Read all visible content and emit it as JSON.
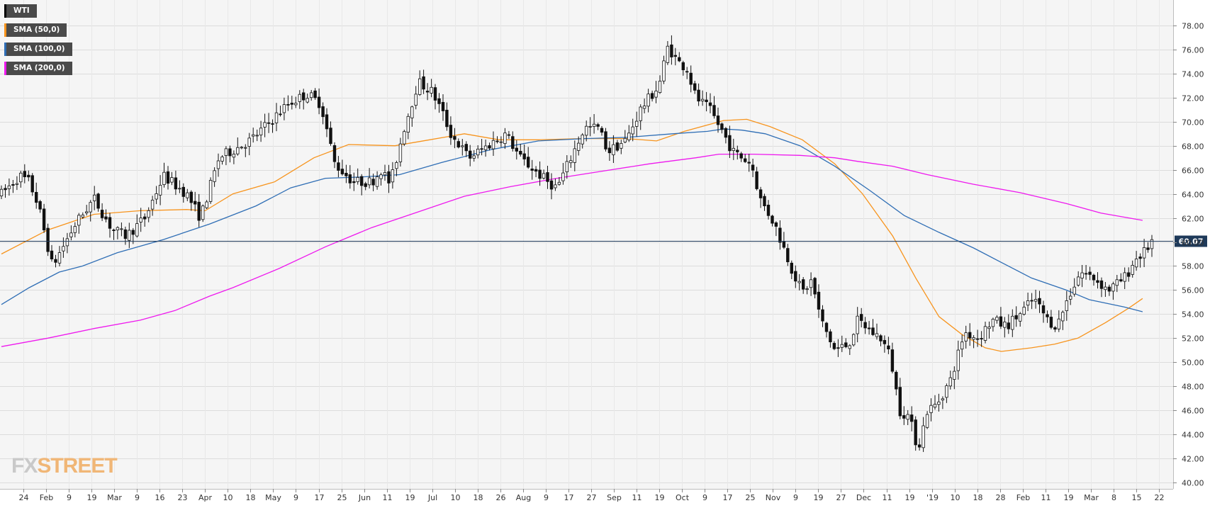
{
  "legend": {
    "items": [
      {
        "label": "WTI",
        "color": "#000000"
      },
      {
        "label": "SMA (50,0)",
        "color": "#f7941d"
      },
      {
        "label": "SMA (100,0)",
        "color": "#2f6eb5"
      },
      {
        "label": "SMA (200,0)",
        "color": "#ee19ee"
      }
    ]
  },
  "logo": {
    "fx": "FX",
    "street": "STREET"
  },
  "chart_data": {
    "type": "line",
    "ylim": [
      40,
      78
    ],
    "y_ticks": [
      "40.00",
      "42.00",
      "44.00",
      "46.00",
      "48.00",
      "50.00",
      "52.00",
      "54.00",
      "56.00",
      "58.00",
      "60.00",
      "62.00",
      "64.00",
      "66.00",
      "68.00",
      "70.00",
      "72.00",
      "74.00",
      "76.00",
      "78.00"
    ],
    "x_tick_labels": [
      "24",
      "Feb",
      "9",
      "19",
      "Mar",
      "9",
      "16",
      "23",
      "Apr",
      "10",
      "18",
      "May",
      "9",
      "17",
      "25",
      "Jun",
      "11",
      "19",
      "Jul",
      "10",
      "18",
      "26",
      "Aug",
      "9",
      "17",
      "27",
      "Sep",
      "11",
      "19",
      "Oct",
      "9",
      "17",
      "25",
      "Nov",
      "9",
      "19",
      "27",
      "Dec",
      "11",
      "19",
      "'19",
      "10",
      "18",
      "28",
      "Feb",
      "11",
      "19",
      "Mar",
      "8",
      "15",
      "22"
    ],
    "last_price": {
      "value": 60.07,
      "label": "60.07"
    },
    "candles": {
      "anchors": [
        [
          0,
          64.0
        ],
        [
          8,
          65.5
        ],
        [
          12,
          65.0
        ],
        [
          16,
          63.0
        ],
        [
          22,
          58.0
        ],
        [
          32,
          61.5
        ],
        [
          40,
          63.6
        ],
        [
          48,
          61.0
        ],
        [
          54,
          60.5
        ],
        [
          62,
          62.0
        ],
        [
          70,
          65.5
        ],
        [
          80,
          64.0
        ],
        [
          86,
          62.0
        ],
        [
          94,
          67.0
        ],
        [
          108,
          68.5
        ],
        [
          124,
          71.5
        ],
        [
          132,
          72.3
        ],
        [
          138,
          71.5
        ],
        [
          144,
          66.5
        ],
        [
          152,
          65.0
        ],
        [
          160,
          65.0
        ],
        [
          164,
          66.0
        ],
        [
          168,
          64.8
        ],
        [
          174,
          69.5
        ],
        [
          180,
          73.3
        ],
        [
          186,
          72.5
        ],
        [
          190,
          71.0
        ],
        [
          194,
          69.0
        ],
        [
          202,
          67.0
        ],
        [
          210,
          68.0
        ],
        [
          218,
          69.0
        ],
        [
          224,
          67.0
        ],
        [
          230,
          66.0
        ],
        [
          236,
          65.0
        ],
        [
          240,
          64.5
        ],
        [
          246,
          67.0
        ],
        [
          252,
          69.5
        ],
        [
          258,
          69.5
        ],
        [
          262,
          67.5
        ],
        [
          270,
          68.5
        ],
        [
          276,
          71.0
        ],
        [
          284,
          73.0
        ],
        [
          288,
          76.3
        ],
        [
          292,
          75.0
        ],
        [
          296,
          74.5
        ],
        [
          300,
          72.0
        ],
        [
          306,
          71.0
        ],
        [
          312,
          69.0
        ],
        [
          316,
          67.5
        ],
        [
          320,
          67.0
        ],
        [
          324,
          66.5
        ],
        [
          328,
          63.5
        ],
        [
          334,
          61.5
        ],
        [
          342,
          57.5
        ],
        [
          346,
          55.8
        ],
        [
          350,
          56.8
        ],
        [
          354,
          53.5
        ],
        [
          360,
          51.0
        ],
        [
          366,
          51.5
        ],
        [
          370,
          53.5
        ],
        [
          376,
          52.5
        ],
        [
          380,
          52.0
        ],
        [
          384,
          50.5
        ],
        [
          388,
          46.0
        ],
        [
          392,
          45.5
        ],
        [
          396,
          42.8
        ],
        [
          400,
          46.0
        ],
        [
          404,
          46.5
        ],
        [
          410,
          48.5
        ],
        [
          416,
          52.5
        ],
        [
          422,
          52.0
        ],
        [
          428,
          53.5
        ],
        [
          434,
          53.0
        ],
        [
          440,
          54.0
        ],
        [
          446,
          55.3
        ],
        [
          452,
          53.5
        ],
        [
          456,
          53.0
        ],
        [
          460,
          55.0
        ],
        [
          466,
          57.5
        ],
        [
          472,
          57.0
        ],
        [
          478,
          56.0
        ],
        [
          482,
          56.5
        ],
        [
          486,
          57.2
        ],
        [
          490,
          58.6
        ],
        [
          494,
          59.2
        ],
        [
          497,
          60.07
        ]
      ],
      "count": 298,
      "seed": 7
    },
    "series": [
      {
        "name": "SMA (50,0)",
        "color": "#f7941d",
        "values": [
          [
            0,
            59.0
          ],
          [
            20,
            61.0
          ],
          [
            40,
            62.3
          ],
          [
            60,
            62.6
          ],
          [
            80,
            62.7
          ],
          [
            88,
            62.6
          ],
          [
            100,
            64.0
          ],
          [
            118,
            65.0
          ],
          [
            135,
            67.0
          ],
          [
            150,
            68.1
          ],
          [
            170,
            68.0
          ],
          [
            185,
            68.5
          ],
          [
            200,
            69.0
          ],
          [
            215,
            68.5
          ],
          [
            232,
            68.5
          ],
          [
            250,
            68.6
          ],
          [
            270,
            68.6
          ],
          [
            283,
            68.4
          ],
          [
            295,
            69.2
          ],
          [
            312,
            70.1
          ],
          [
            322,
            70.2
          ],
          [
            332,
            69.6
          ],
          [
            346,
            68.5
          ],
          [
            360,
            66.5
          ],
          [
            372,
            64.0
          ],
          [
            385,
            60.5
          ],
          [
            395,
            57.0
          ],
          [
            405,
            53.8
          ],
          [
            415,
            52.3
          ],
          [
            425,
            51.2
          ],
          [
            432,
            50.9
          ],
          [
            445,
            51.2
          ],
          [
            455,
            51.5
          ],
          [
            465,
            52.0
          ],
          [
            477,
            53.3
          ],
          [
            487,
            54.5
          ],
          [
            493,
            55.3
          ]
        ]
      },
      {
        "name": "SMA (100,0)",
        "color": "#2f6eb5",
        "values": [
          [
            0,
            54.8
          ],
          [
            12,
            56.2
          ],
          [
            25,
            57.5
          ],
          [
            35,
            58.0
          ],
          [
            50,
            59.1
          ],
          [
            70,
            60.2
          ],
          [
            90,
            61.5
          ],
          [
            110,
            63.0
          ],
          [
            125,
            64.5
          ],
          [
            140,
            65.3
          ],
          [
            155,
            65.4
          ],
          [
            172,
            65.6
          ],
          [
            190,
            66.6
          ],
          [
            212,
            67.7
          ],
          [
            232,
            68.4
          ],
          [
            252,
            68.6
          ],
          [
            270,
            68.7
          ],
          [
            290,
            69.0
          ],
          [
            305,
            69.2
          ],
          [
            312,
            69.4
          ],
          [
            320,
            69.3
          ],
          [
            330,
            69.0
          ],
          [
            345,
            68.0
          ],
          [
            360,
            66.3
          ],
          [
            375,
            64.3
          ],
          [
            390,
            62.2
          ],
          [
            405,
            60.8
          ],
          [
            420,
            59.5
          ],
          [
            432,
            58.3
          ],
          [
            445,
            57.0
          ],
          [
            460,
            56.0
          ],
          [
            470,
            55.2
          ],
          [
            485,
            54.6
          ],
          [
            493,
            54.2
          ]
        ]
      },
      {
        "name": "SMA (200,0)",
        "color": "#ee19ee",
        "values": [
          [
            0,
            51.3
          ],
          [
            20,
            52.0
          ],
          [
            40,
            52.8
          ],
          [
            60,
            53.5
          ],
          [
            75,
            54.3
          ],
          [
            90,
            55.5
          ],
          [
            100,
            56.2
          ],
          [
            120,
            57.8
          ],
          [
            140,
            59.6
          ],
          [
            160,
            61.2
          ],
          [
            180,
            62.5
          ],
          [
            200,
            63.8
          ],
          [
            220,
            64.6
          ],
          [
            240,
            65.3
          ],
          [
            260,
            65.9
          ],
          [
            280,
            66.5
          ],
          [
            300,
            67.0
          ],
          [
            310,
            67.3
          ],
          [
            325,
            67.3
          ],
          [
            345,
            67.2
          ],
          [
            360,
            67.0
          ],
          [
            370,
            66.7
          ],
          [
            385,
            66.3
          ],
          [
            400,
            65.6
          ],
          [
            420,
            64.8
          ],
          [
            440,
            64.1
          ],
          [
            460,
            63.2
          ],
          [
            475,
            62.4
          ],
          [
            493,
            61.8
          ]
        ]
      }
    ]
  }
}
